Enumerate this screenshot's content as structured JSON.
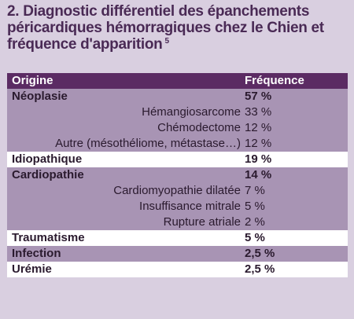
{
  "title": {
    "text": "2. Diagnostic différentiel des épanchements péricardiques hémorragiques chez le Chien et fréquence d'apparition",
    "ref": "5"
  },
  "table": {
    "headers": {
      "origin": "Origine",
      "frequency": "Fréquence"
    },
    "rows": [
      {
        "origin": "Néoplasie",
        "frequency": "57 %",
        "level": "main"
      },
      {
        "origin": "Hémangiosarcome",
        "frequency": "33 %",
        "level": "sub"
      },
      {
        "origin": "Chémodectome",
        "frequency": "12 %",
        "level": "sub"
      },
      {
        "origin": "Autre (mésothéliome, métastase…)",
        "frequency": "12 %",
        "level": "sub"
      },
      {
        "origin": "Idiopathique",
        "frequency": "19 %",
        "level": "main"
      },
      {
        "origin": "Cardiopathie",
        "frequency": "14 %",
        "level": "main"
      },
      {
        "origin": "Cardiomyopathie dilatée",
        "frequency": "7 %",
        "level": "sub"
      },
      {
        "origin": "Insuffisance mitrale",
        "frequency": "5 %",
        "level": "sub"
      },
      {
        "origin": "Rupture atriale",
        "frequency": "2 %",
        "level": "sub"
      },
      {
        "origin": "Traumatisme",
        "frequency": "5 %",
        "level": "main"
      },
      {
        "origin": "Infection",
        "frequency": "2,5 %",
        "level": "main"
      },
      {
        "origin": "Urémie",
        "frequency": "2,5 %",
        "level": "main"
      }
    ]
  },
  "colors": {
    "header": "#5b2b63",
    "row_purple": "#a894b4",
    "row_white": "#ffffff",
    "background": "#d9cfe0",
    "title": "#4a2a55"
  }
}
